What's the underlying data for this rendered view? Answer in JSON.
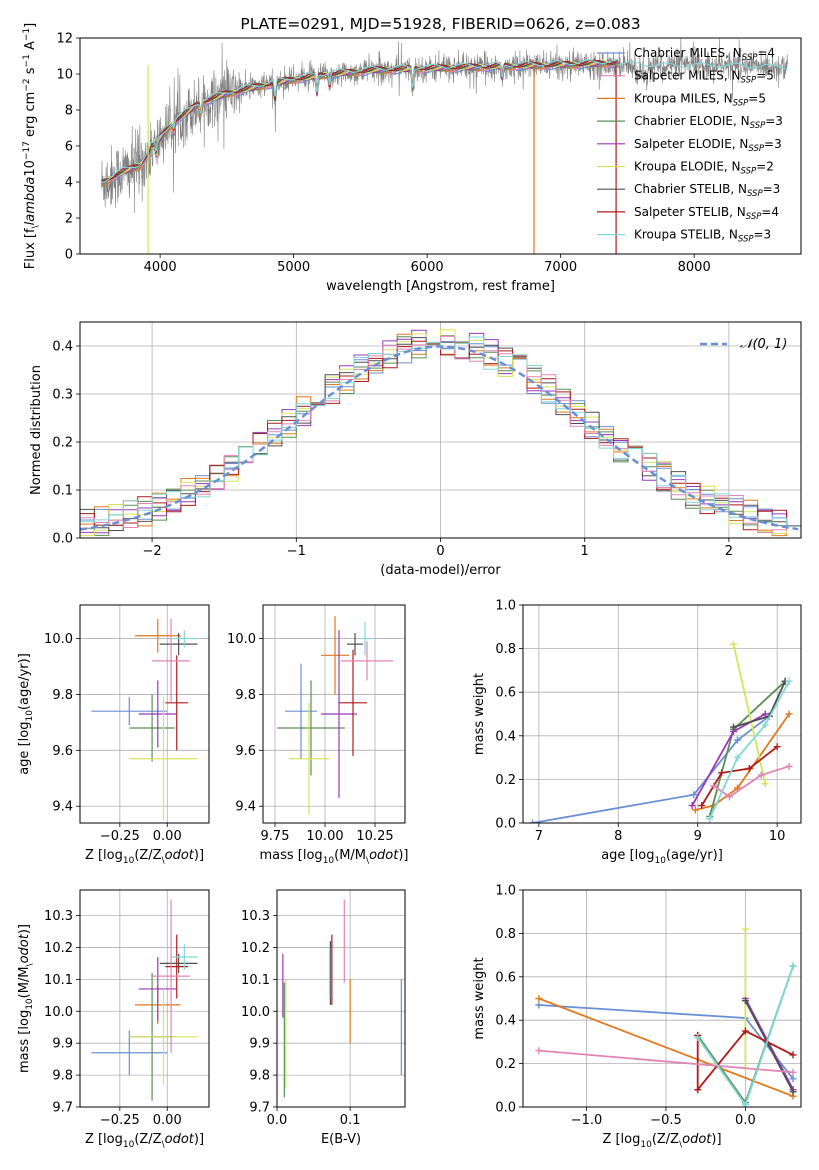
{
  "colors": {
    "blue": "#6a8fd6",
    "orange": "#e07a1e",
    "green": "#5c8f55",
    "purple": "#9a38b8",
    "yellow": "#d6e45a",
    "dark": "#505050",
    "red": "#b01a1a",
    "pink": "#e384b4",
    "cyan": "#7fd8d8",
    "gray": "#808080",
    "grid": "#b0b0b0",
    "black": "#000000"
  },
  "chart_data": [
    {
      "id": "spectrum",
      "type": "line",
      "title": "PLATE=0291, MJD=51928, FIBERID=0626, z=0.083",
      "xlabel": "wavelength [Angstrom, rest frame]",
      "ylabel": "Flux [f$_\\lambda$10$^{-17}$ erg cm$^{-2}$ s$^{-1}$ A$^{-1}$]",
      "xlim": [
        3400,
        8800
      ],
      "ylim": [
        0,
        12
      ],
      "xticks": [
        4000,
        5000,
        6000,
        7000,
        8000
      ],
      "yticks": [
        0,
        2,
        4,
        6,
        8,
        10,
        12
      ],
      "grid": false,
      "legend_position": "right",
      "legend": [
        {
          "label": "Chabrier MILES, N$_{SSP}$=4",
          "color": "blue"
        },
        {
          "label": "Salpeter MILES, N$_{SSP}$=5",
          "color": "pink"
        },
        {
          "label": "Kroupa MILES, N$_{SSP}$=5",
          "color": "orange"
        },
        {
          "label": "Chabrier ELODIE, N$_{SSP}$=3",
          "color": "green"
        },
        {
          "label": "Salpeter ELODIE, N$_{SSP}$=3",
          "color": "purple"
        },
        {
          "label": "Kroupa ELODIE, N$_{SSP}$=2",
          "color": "yellow"
        },
        {
          "label": "Chabrier STELIB, N$_{SSP}$=3",
          "color": "dark"
        },
        {
          "label": "Salpeter STELIB, N$_{SSP}$=4",
          "color": "red"
        },
        {
          "label": "Kroupa STELIB, N$_{SSP}$=3",
          "color": "cyan"
        }
      ],
      "continuum": [
        [
          3560,
          3.9
        ],
        [
          3700,
          4.5
        ],
        [
          3850,
          4.9
        ],
        [
          3950,
          6.0
        ],
        [
          4100,
          7.3
        ],
        [
          4300,
          8.4
        ],
        [
          4500,
          8.9
        ],
        [
          4800,
          9.4
        ],
        [
          5000,
          9.7
        ],
        [
          5300,
          10.0
        ],
        [
          5600,
          10.2
        ],
        [
          6000,
          10.3
        ],
        [
          6500,
          10.4
        ],
        [
          7000,
          10.5
        ],
        [
          7400,
          10.6
        ],
        [
          7800,
          10.5
        ],
        [
          8200,
          10.5
        ],
        [
          8700,
          10.4
        ]
      ],
      "absorption_lines": [
        [
          3934,
          6.0
        ],
        [
          3969,
          5.5
        ],
        [
          4102,
          6.9
        ],
        [
          4304,
          7.8
        ],
        [
          4861,
          8.5
        ],
        [
          5175,
          8.9
        ],
        [
          5270,
          9.3
        ],
        [
          5892,
          9.2
        ],
        [
          6563,
          9.8
        ]
      ],
      "model_range": [
        3560,
        7420
      ],
      "drops": [
        [
          6800,
          "orange"
        ],
        [
          7415,
          "red"
        ],
        [
          3910,
          "yellow"
        ]
      ]
    },
    {
      "id": "residuals",
      "type": "histogram",
      "xlabel": "(data-model)/error",
      "ylabel": "Normed distribution",
      "xlim": [
        -2.5,
        2.5
      ],
      "ylim": [
        0,
        0.45
      ],
      "xticks": [
        -2,
        -1,
        0,
        1,
        2
      ],
      "yticks": [
        0,
        0.1,
        0.2,
        0.3,
        0.4
      ],
      "grid": true,
      "legend_position": "upper right",
      "legend": [
        {
          "label": "$\\mathcal{N}(0,1)$",
          "color": "blue",
          "dashed": true
        }
      ],
      "bin_width": 0.1
    },
    {
      "id": "age-vs-Z",
      "type": "errorbar",
      "xlabel": "Z [log$_{10}$(Z/Z$_\\odot$)]",
      "ylabel": "age  [log$_{10}$(age/yr)]",
      "xlim": [
        -0.46,
        0.22
      ],
      "ylim": [
        9.34,
        10.12
      ],
      "xticks": [
        -0.25,
        0.0
      ],
      "yticks": [
        9.4,
        9.6,
        9.8,
        10.0
      ],
      "grid": true,
      "points": [
        {
          "x": -0.2,
          "xe": 0.2,
          "y": 9.74,
          "ye": 0.05,
          "color": "blue"
        },
        {
          "x": -0.05,
          "xe": 0.12,
          "y": 10.01,
          "ye": 0.06,
          "color": "orange"
        },
        {
          "x": -0.08,
          "xe": 0.12,
          "y": 9.68,
          "ye": 0.12,
          "color": "green"
        },
        {
          "x": -0.05,
          "xe": 0.1,
          "y": 9.73,
          "ye": 0.12,
          "color": "purple"
        },
        {
          "x": -0.02,
          "xe": 0.18,
          "y": 9.57,
          "ye": 0.22,
          "color": "yellow"
        },
        {
          "x": 0.06,
          "xe": 0.1,
          "y": 9.98,
          "ye": 0.04,
          "color": "dark"
        },
        {
          "x": 0.05,
          "xe": 0.06,
          "y": 9.77,
          "ye": 0.17,
          "color": "red"
        },
        {
          "x": 0.02,
          "xe": 0.1,
          "y": 9.92,
          "ye": 0.15,
          "color": "pink"
        },
        {
          "x": 0.09,
          "xe": 0.07,
          "y": 10.0,
          "ye": 0.03,
          "color": "cyan"
        }
      ]
    },
    {
      "id": "age-vs-mass",
      "type": "errorbar",
      "xlabel": "mass [log$_{10}$(M/M$_\\odot$)]",
      "ylabel": "",
      "xlim": [
        9.69,
        10.4
      ],
      "ylim": [
        9.34,
        10.12
      ],
      "xticks": [
        9.75,
        10.0,
        10.25
      ],
      "yticks": [
        9.4,
        9.6,
        9.8,
        10.0
      ],
      "grid": true,
      "points": [
        {
          "x": 9.88,
          "xe": 0.08,
          "y": 9.74,
          "ye": 0.17,
          "color": "blue"
        },
        {
          "x": 10.05,
          "xe": 0.07,
          "y": 9.94,
          "ye": 0.14,
          "color": "orange"
        },
        {
          "x": 9.93,
          "xe": 0.17,
          "y": 9.68,
          "ye": 0.17,
          "color": "green"
        },
        {
          "x": 10.07,
          "xe": 0.09,
          "y": 9.73,
          "ye": 0.3,
          "color": "purple"
        },
        {
          "x": 9.92,
          "xe": 0.1,
          "y": 9.57,
          "ye": 0.2,
          "color": "yellow"
        },
        {
          "x": 10.15,
          "xe": 0.04,
          "y": 9.98,
          "ye": 0.04,
          "color": "dark"
        },
        {
          "x": 10.14,
          "xe": 0.07,
          "y": 9.77,
          "ye": 0.19,
          "color": "red"
        },
        {
          "x": 10.21,
          "xe": 0.13,
          "y": 9.92,
          "ye": 0.07,
          "color": "pink"
        },
        {
          "x": 10.2,
          "xe": 0.03,
          "y": 10.0,
          "ye": 0.06,
          "color": "cyan"
        }
      ]
    },
    {
      "id": "weight-vs-age",
      "type": "line",
      "xlabel": "age  [log$_{10}$(age/yr)]",
      "ylabel": "mass weight",
      "xlim": [
        6.8,
        10.3
      ],
      "ylim": [
        0,
        1
      ],
      "xticks": [
        7,
        8,
        9,
        10
      ],
      "yticks": [
        0,
        0.2,
        0.4,
        0.6,
        0.8,
        1.0
      ],
      "grid": true,
      "series": [
        {
          "color": "blue",
          "x": [
            6.92,
            8.95,
            9.5,
            9.9
          ],
          "y": [
            0.0,
            0.13,
            0.38,
            0.49
          ]
        },
        {
          "color": "orange",
          "x": [
            8.97,
            9.2,
            9.5,
            10.15
          ],
          "y": [
            0.06,
            0.08,
            0.16,
            0.5
          ]
        },
        {
          "color": "green",
          "x": [
            9.15,
            9.45,
            10.1
          ],
          "y": [
            0.03,
            0.43,
            0.65
          ]
        },
        {
          "color": "purple",
          "x": [
            8.93,
            9.45,
            9.85
          ],
          "y": [
            0.08,
            0.42,
            0.5
          ]
        },
        {
          "color": "yellow",
          "x": [
            9.45,
            9.85
          ],
          "y": [
            0.82,
            0.18
          ]
        },
        {
          "color": "dark",
          "x": [
            9.45,
            9.9,
            10.1
          ],
          "y": [
            0.44,
            0.49,
            0.65
          ]
        },
        {
          "color": "red",
          "x": [
            9.05,
            9.3,
            9.65,
            10.0
          ],
          "y": [
            0.08,
            0.23,
            0.25,
            0.35
          ]
        },
        {
          "color": "pink",
          "x": [
            9.2,
            9.4,
            9.8,
            10.15
          ],
          "y": [
            0.17,
            0.12,
            0.22,
            0.26
          ]
        },
        {
          "color": "cyan",
          "x": [
            9.15,
            9.5,
            9.85,
            10.15
          ],
          "y": [
            0.02,
            0.3,
            0.45,
            0.65
          ]
        }
      ]
    },
    {
      "id": "mass-vs-Z",
      "type": "errorbar",
      "xlabel": "Z [log$_{10}$(Z/Z$_\\odot$)]",
      "ylabel": "mass [log$_{10}$(M/M$_\\odot$)]",
      "xlim": [
        -0.46,
        0.22
      ],
      "ylim": [
        9.7,
        10.38
      ],
      "xticks": [
        -0.25,
        0.0
      ],
      "yticks": [
        9.7,
        9.8,
        9.9,
        10.0,
        10.1,
        10.2,
        10.3
      ],
      "grid": true,
      "points": [
        {
          "x": -0.2,
          "xe": 0.2,
          "y": 9.87,
          "ye": 0.07,
          "color": "blue"
        },
        {
          "x": -0.05,
          "xe": 0.12,
          "y": 10.02,
          "ye": 0.06,
          "color": "orange"
        },
        {
          "x": -0.08,
          "xe": 0.12,
          "y": 9.92,
          "ye": 0.2,
          "color": "green"
        },
        {
          "x": -0.05,
          "xe": 0.1,
          "y": 10.07,
          "ye": 0.1,
          "color": "purple"
        },
        {
          "x": -0.02,
          "xe": 0.18,
          "y": 9.92,
          "ye": 0.15,
          "color": "yellow"
        },
        {
          "x": 0.06,
          "xe": 0.1,
          "y": 10.15,
          "ye": 0.03,
          "color": "dark"
        },
        {
          "x": 0.05,
          "xe": 0.06,
          "y": 10.14,
          "ye": 0.1,
          "color": "red"
        },
        {
          "x": 0.02,
          "xe": 0.1,
          "y": 10.11,
          "ye": 0.24,
          "color": "pink"
        },
        {
          "x": 0.09,
          "xe": 0.07,
          "y": 10.17,
          "ye": 0.04,
          "color": "cyan"
        }
      ]
    },
    {
      "id": "mass-vs-EBV",
      "type": "errorbar",
      "xlabel": "E(B-V)",
      "ylabel": "",
      "xlim": [
        0.0,
        0.175
      ],
      "ylim": [
        9.7,
        10.38
      ],
      "xticks": [
        0.0,
        0.1
      ],
      "yticks": [
        9.7,
        9.8,
        9.9,
        10.0,
        10.1,
        10.2,
        10.3
      ],
      "grid": true,
      "points": [
        {
          "x": 0.17,
          "ye": 0.15,
          "y": 9.95,
          "color": "blue"
        },
        {
          "x": 0.1,
          "ye": 0.1,
          "y": 10.0,
          "color": "orange"
        },
        {
          "x": 0.01,
          "ye": 0.18,
          "y": 9.91,
          "color": "green"
        },
        {
          "x": 0.008,
          "ye": 0.1,
          "y": 10.08,
          "color": "purple"
        },
        {
          "x": 0.012,
          "ye": 0.17,
          "y": 9.93,
          "color": "yellow"
        },
        {
          "x": 0.073,
          "ye": 0.1,
          "y": 10.12,
          "color": "dark"
        },
        {
          "x": 0.075,
          "ye": 0.11,
          "y": 10.13,
          "color": "red"
        },
        {
          "x": 0.092,
          "ye": 0.13,
          "y": 10.22,
          "color": "pink"
        },
        {
          "x": 0.072,
          "ye": 0.08,
          "y": 10.12,
          "color": "cyan"
        }
      ]
    },
    {
      "id": "weight-vs-Z",
      "type": "line",
      "xlabel": "Z [log$_{10}$(Z/Z$_\\odot$)]",
      "ylabel": "mass weight",
      "xlim": [
        -1.4,
        0.35
      ],
      "ylim": [
        0,
        1
      ],
      "xticks": [
        -1.0,
        -0.5,
        0.0
      ],
      "yticks": [
        0,
        0.2,
        0.4,
        0.6,
        0.8,
        1.0
      ],
      "grid": true,
      "series": [
        {
          "color": "blue",
          "x": [
            -1.3,
            0.0,
            0.3
          ],
          "y": [
            0.47,
            0.41,
            0.13
          ]
        },
        {
          "color": "orange",
          "x": [
            -1.3,
            0.3
          ],
          "y": [
            0.5,
            0.05
          ]
        },
        {
          "color": "green",
          "x": [
            -0.3,
            0.0,
            0.3
          ],
          "y": [
            0.33,
            0.02,
            0.65
          ]
        },
        {
          "color": "purple",
          "x": [
            0.0,
            0.3
          ],
          "y": [
            0.5,
            0.08
          ]
        },
        {
          "color": "yellow",
          "x": [
            0.0,
            0.0
          ],
          "y": [
            0.82,
            0.18
          ]
        },
        {
          "color": "dark",
          "x": [
            0.0,
            0.3
          ],
          "y": [
            0.49,
            0.07
          ]
        },
        {
          "color": "red",
          "x": [
            -0.3,
            -0.3,
            0.0,
            0.3
          ],
          "y": [
            0.33,
            0.08,
            0.35,
            0.24
          ]
        },
        {
          "color": "pink",
          "x": [
            -1.3,
            0.3
          ],
          "y": [
            0.26,
            0.16
          ]
        },
        {
          "color": "cyan",
          "x": [
            -0.3,
            0.0,
            0.3
          ],
          "y": [
            0.32,
            0.01,
            0.65
          ]
        }
      ]
    }
  ]
}
